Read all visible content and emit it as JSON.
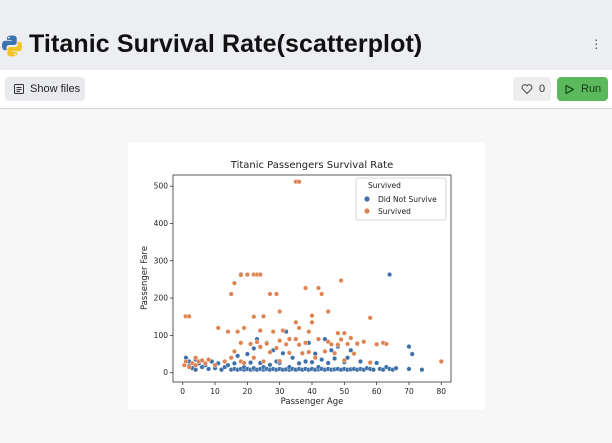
{
  "app": {
    "title": "Titanic Survival Rate(scatterplot)",
    "logo_icon": "python-logo-icon"
  },
  "toolbar": {
    "show_files_label": "Show files",
    "like_count": "0",
    "run_label": "Run",
    "run_color": "#5cb85c"
  },
  "chart_data": {
    "type": "scatter",
    "title": "Titanic Passengers Survival Rate",
    "xlabel": "Passenger Age",
    "ylabel": "Passenger Fare",
    "xlim": [
      -3,
      83
    ],
    "ylim": [
      -25,
      530
    ],
    "xticks": [
      "0",
      "10",
      "20",
      "30",
      "40",
      "50",
      "60",
      "70",
      "80"
    ],
    "yticks": [
      "0",
      "100",
      "200",
      "300",
      "400",
      "500"
    ],
    "grid": false,
    "legend": {
      "title": "Survived",
      "placement": "top-right",
      "entries": [
        "Did Not Survive",
        "Survived"
      ]
    },
    "series": [
      {
        "name": "Did Not Survive",
        "color": "#3d6fa8",
        "points": [
          [
            1,
            40
          ],
          [
            2,
            30
          ],
          [
            2,
            18
          ],
          [
            3,
            12
          ],
          [
            4,
            35
          ],
          [
            4,
            8
          ],
          [
            5,
            25
          ],
          [
            6,
            15
          ],
          [
            7,
            20
          ],
          [
            8,
            10
          ],
          [
            9,
            30
          ],
          [
            10,
            12
          ],
          [
            11,
            25
          ],
          [
            12,
            8
          ],
          [
            13,
            15
          ],
          [
            14,
            20
          ],
          [
            15,
            8
          ],
          [
            16,
            10
          ],
          [
            16,
            25
          ],
          [
            17,
            8
          ],
          [
            17,
            45
          ],
          [
            18,
            264
          ],
          [
            18,
            10
          ],
          [
            18,
            30
          ],
          [
            19,
            8
          ],
          [
            19,
            15
          ],
          [
            20,
            10
          ],
          [
            20,
            50
          ],
          [
            21,
            8
          ],
          [
            21,
            27
          ],
          [
            22,
            9
          ],
          [
            22,
            65
          ],
          [
            22,
            12
          ],
          [
            23,
            8
          ],
          [
            23,
            90
          ],
          [
            24,
            10
          ],
          [
            24,
            26
          ],
          [
            24,
            70
          ],
          [
            25,
            8
          ],
          [
            25,
            15
          ],
          [
            26,
            10
          ],
          [
            26,
            80
          ],
          [
            27,
            8
          ],
          [
            27,
            21
          ],
          [
            28,
            10
          ],
          [
            28,
            60
          ],
          [
            29,
            8
          ],
          [
            29,
            30
          ],
          [
            30,
            10
          ],
          [
            30,
            26
          ],
          [
            31,
            8
          ],
          [
            31,
            52
          ],
          [
            32,
            9
          ],
          [
            32,
            110
          ],
          [
            33,
            8
          ],
          [
            33,
            15
          ],
          [
            34,
            10
          ],
          [
            34,
            40
          ],
          [
            35,
            8
          ],
          [
            35,
            90
          ],
          [
            36,
            10
          ],
          [
            36,
            25
          ],
          [
            37,
            8
          ],
          [
            37,
            52
          ],
          [
            38,
            10
          ],
          [
            38,
            30
          ],
          [
            39,
            8
          ],
          [
            39,
            80
          ],
          [
            40,
            10
          ],
          [
            40,
            28
          ],
          [
            41,
            8
          ],
          [
            41,
            51
          ],
          [
            42,
            9
          ],
          [
            42,
            15
          ],
          [
            43,
            10
          ],
          [
            43,
            35
          ],
          [
            44,
            8
          ],
          [
            44,
            90
          ],
          [
            45,
            10
          ],
          [
            45,
            26
          ],
          [
            46,
            8
          ],
          [
            46,
            60
          ],
          [
            47,
            9
          ],
          [
            47,
            38
          ],
          [
            48,
            10
          ],
          [
            48,
            70
          ],
          [
            49,
            8
          ],
          [
            50,
            10
          ],
          [
            50,
            28
          ],
          [
            51,
            8
          ],
          [
            51,
            40
          ],
          [
            52,
            9
          ],
          [
            52,
            60
          ],
          [
            53,
            10
          ],
          [
            54,
            8
          ],
          [
            54,
            77
          ],
          [
            55,
            10
          ],
          [
            55,
            30
          ],
          [
            56,
            8
          ],
          [
            57,
            12
          ],
          [
            58,
            10
          ],
          [
            59,
            8
          ],
          [
            60,
            26
          ],
          [
            61,
            10
          ],
          [
            62,
            8
          ],
          [
            63,
            15
          ],
          [
            64,
            263
          ],
          [
            64,
            10
          ],
          [
            65,
            8
          ],
          [
            66,
            12
          ],
          [
            70,
            10
          ],
          [
            70,
            70
          ],
          [
            71,
            50
          ],
          [
            74,
            8
          ]
        ]
      },
      {
        "name": "Survived",
        "color": "#dd8452",
        "points": [
          [
            0.5,
            20
          ],
          [
            0.9,
            151
          ],
          [
            1,
            30
          ],
          [
            2,
            151
          ],
          [
            2,
            15
          ],
          [
            3,
            25
          ],
          [
            4,
            40
          ],
          [
            4,
            20
          ],
          [
            5,
            30
          ],
          [
            6,
            33
          ],
          [
            7,
            25
          ],
          [
            8,
            35
          ],
          [
            10,
            20
          ],
          [
            11,
            120
          ],
          [
            13,
            30
          ],
          [
            14,
            110
          ],
          [
            15,
            211
          ],
          [
            15,
            40
          ],
          [
            16,
            57
          ],
          [
            16,
            240
          ],
          [
            17,
            110
          ],
          [
            18,
            262
          ],
          [
            18,
            30
          ],
          [
            18,
            80
          ],
          [
            19,
            26
          ],
          [
            19,
            120
          ],
          [
            20,
            263
          ],
          [
            21,
            77
          ],
          [
            22,
            263
          ],
          [
            22,
            150
          ],
          [
            22,
            40
          ],
          [
            23,
            263
          ],
          [
            23,
            82
          ],
          [
            24,
            263
          ],
          [
            24,
            113
          ],
          [
            24,
            69
          ],
          [
            25,
            151
          ],
          [
            25,
            30
          ],
          [
            26,
            78
          ],
          [
            27,
            211
          ],
          [
            27,
            55
          ],
          [
            28,
            110
          ],
          [
            29,
            211
          ],
          [
            29,
            66
          ],
          [
            30,
            164
          ],
          [
            30,
            86
          ],
          [
            30,
            31
          ],
          [
            31,
            113
          ],
          [
            32,
            76
          ],
          [
            33,
            90
          ],
          [
            33,
            53
          ],
          [
            35,
            512
          ],
          [
            35,
            135
          ],
          [
            35,
            90
          ],
          [
            36,
            512
          ],
          [
            36,
            120
          ],
          [
            36,
            75
          ],
          [
            37,
            52
          ],
          [
            38,
            227
          ],
          [
            38,
            80
          ],
          [
            39,
            110
          ],
          [
            39,
            55
          ],
          [
            40,
            153
          ],
          [
            40,
            135
          ],
          [
            41,
            40
          ],
          [
            42,
            227
          ],
          [
            42,
            90
          ],
          [
            43,
            211
          ],
          [
            44,
            57
          ],
          [
            45,
            164
          ],
          [
            45,
            83
          ],
          [
            46,
            76
          ],
          [
            47,
            52
          ],
          [
            48,
            106
          ],
          [
            48,
            75
          ],
          [
            49,
            247
          ],
          [
            49,
            89
          ],
          [
            50,
            106
          ],
          [
            50,
            33
          ],
          [
            51,
            77
          ],
          [
            52,
            93
          ],
          [
            53,
            51
          ],
          [
            54,
            78
          ],
          [
            56,
            83
          ],
          [
            58,
            147
          ],
          [
            58,
            27
          ],
          [
            60,
            76
          ],
          [
            62,
            80
          ],
          [
            63,
            77
          ],
          [
            80,
            30
          ]
        ]
      }
    ]
  }
}
